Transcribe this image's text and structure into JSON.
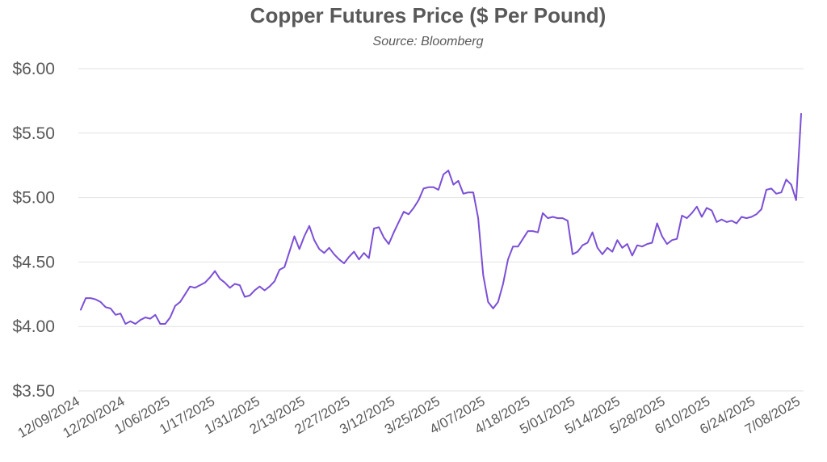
{
  "chart_data": {
    "type": "line",
    "title": "Copper Futures Price ($ Per Pound)",
    "subtitle": "Source: Bloomberg",
    "xlabel": "",
    "ylabel": "",
    "ylim": [
      3.5,
      6.0
    ],
    "yticks": [
      3.5,
      4.0,
      4.5,
      5.0,
      5.5,
      6.0
    ],
    "ytick_labels": [
      "$3.50",
      "$4.00",
      "$4.50",
      "$5.00",
      "$5.50",
      "$6.00"
    ],
    "grid": true,
    "legend": false,
    "line_color": "#7b4fd6",
    "x_tick_labels": [
      "12/09/2024",
      "12/20/2024",
      "1/06/2025",
      "1/17/2025",
      "1/31/2025",
      "2/13/2025",
      "2/27/2025",
      "3/12/2025",
      "3/25/2025",
      "4/07/2025",
      "4/18/2025",
      "5/01/2025",
      "5/14/2025",
      "5/28/2025",
      "6/10/2025",
      "6/24/2025",
      "7/08/2025"
    ],
    "series": [
      {
        "values": [
          4.13,
          4.22,
          4.22,
          4.21,
          4.19,
          4.15,
          4.14,
          4.09,
          4.1,
          4.02,
          4.04,
          4.02,
          4.05,
          4.07,
          4.06,
          4.09,
          4.02,
          4.02,
          4.07,
          4.16,
          4.19,
          4.25,
          4.31,
          4.3,
          4.32,
          4.34,
          4.38,
          4.43,
          4.37,
          4.34,
          4.3,
          4.33,
          4.32,
          4.23,
          4.24,
          4.28,
          4.31,
          4.28,
          4.31,
          4.35,
          4.44,
          4.46,
          4.58,
          4.7,
          4.6,
          4.7,
          4.78,
          4.67,
          4.6,
          4.57,
          4.61,
          4.56,
          4.52,
          4.49,
          4.54,
          4.58,
          4.52,
          4.57,
          4.53,
          4.76,
          4.77,
          4.69,
          4.64,
          4.73,
          4.81,
          4.89,
          4.87,
          4.92,
          4.98,
          5.07,
          5.08,
          5.08,
          5.06,
          5.18,
          5.21,
          5.1,
          5.13,
          5.03,
          5.04,
          5.04,
          4.84,
          4.4,
          4.19,
          4.14,
          4.19,
          4.33,
          4.52,
          4.62,
          4.62,
          4.68,
          4.74,
          4.74,
          4.73,
          4.88,
          4.84,
          4.85,
          4.84,
          4.84,
          4.82,
          4.56,
          4.58,
          4.63,
          4.65,
          4.73,
          4.61,
          4.56,
          4.61,
          4.58,
          4.67,
          4.61,
          4.64,
          4.55,
          4.63,
          4.62,
          4.64,
          4.65,
          4.8,
          4.7,
          4.64,
          4.67,
          4.68,
          4.86,
          4.84,
          4.88,
          4.93,
          4.85,
          4.92,
          4.9,
          4.81,
          4.83,
          4.81,
          4.82,
          4.8,
          4.85,
          4.84,
          4.85,
          4.87,
          4.91,
          5.06,
          5.07,
          5.03,
          5.04,
          5.14,
          5.1,
          4.98,
          5.65
        ]
      }
    ]
  }
}
